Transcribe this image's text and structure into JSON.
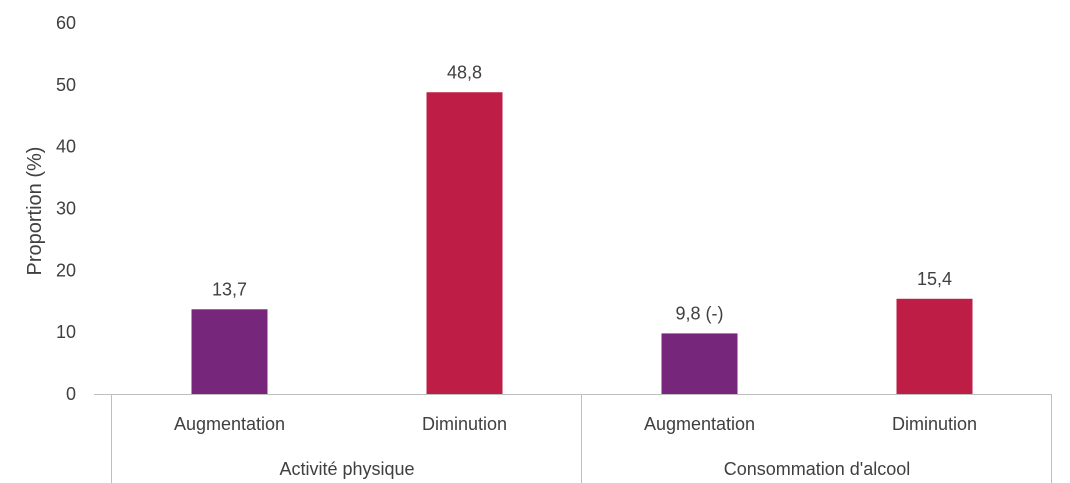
{
  "chart_data": {
    "type": "bar",
    "title": "",
    "ylabel": "Proportion (%)",
    "ylim": [
      0,
      60
    ],
    "yticks": [
      "0",
      "10",
      "20",
      "30",
      "40",
      "50",
      "60"
    ],
    "grid": false,
    "bars": [
      {
        "group": "Activité physique",
        "category": "Augmentation",
        "value": 13.7,
        "label": "13,7",
        "color": "#76267b"
      },
      {
        "group": "Activité physique",
        "category": "Diminution",
        "value": 48.8,
        "label": "48,8",
        "color": "#be1e45"
      },
      {
        "group": "Consommation d'alcool",
        "category": "Augmentation",
        "value": 9.8,
        "label": "9,8 (-)",
        "color": "#76267b"
      },
      {
        "group": "Consommation d'alcool",
        "category": "Diminution",
        "value": 15.4,
        "label": "15,4",
        "color": "#be1e45"
      }
    ],
    "groups": [
      "Activité physique",
      "Consommation d'alcool"
    ]
  }
}
